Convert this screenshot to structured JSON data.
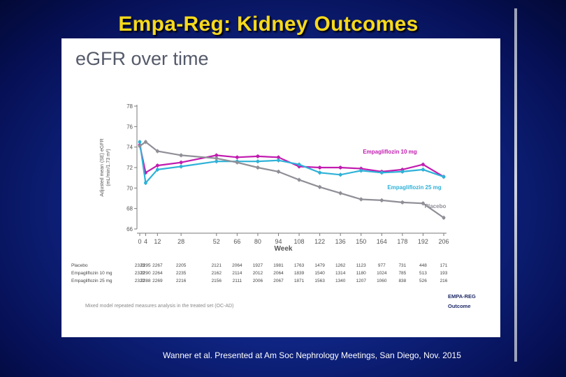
{
  "slide": {
    "title": "Empa-Reg: Kidney Outcomes",
    "citation": "Wanner et al.  Presented at Am Soc Nephrology Meetings, San Diego, Nov. 2015",
    "colors": {
      "title": "#f6d91c",
      "background": "#0f2583"
    }
  },
  "chart_data": {
    "type": "line",
    "title": "eGFR over time",
    "xlabel": "Week",
    "ylabel_lines": [
      "Adjusted mean (SE) eGFR",
      "(mL/min/1.73 m²)"
    ],
    "ylim": [
      66,
      78
    ],
    "yticks": [
      66,
      68,
      70,
      72,
      74,
      76,
      78
    ],
    "x": [
      0,
      4,
      12,
      28,
      52,
      66,
      80,
      94,
      108,
      122,
      136,
      150,
      164,
      178,
      192,
      206
    ],
    "x_tick_labels": [
      "0",
      "4",
      "12",
      "28",
      "52",
      "66",
      "80",
      "94",
      "108",
      "122",
      "136",
      "150",
      "164",
      "178",
      "192",
      "206"
    ],
    "series": [
      {
        "name": "Empagliflozin 10 mg",
        "color": "#c21cb0",
        "values": [
          74.2,
          71.5,
          72.2,
          72.5,
          73.2,
          73.0,
          73.1,
          73.0,
          72.1,
          72.0,
          72.0,
          71.9,
          71.6,
          71.8,
          72.3,
          71.1
        ]
      },
      {
        "name": "Empagliflozin 25 mg",
        "color": "#2eb2d8",
        "values": [
          74.5,
          70.5,
          71.8,
          72.1,
          72.6,
          72.6,
          72.6,
          72.7,
          72.3,
          71.5,
          71.3,
          71.7,
          71.5,
          71.6,
          71.8,
          71.1
        ]
      },
      {
        "name": "Placebo",
        "color": "#8f8f97",
        "values": [
          74.1,
          74.5,
          73.6,
          73.2,
          72.9,
          72.5,
          72.0,
          71.6,
          70.8,
          70.1,
          69.5,
          68.9,
          68.8,
          68.6,
          68.5,
          67.1
        ]
      }
    ],
    "at_risk": {
      "rows": [
        {
          "label": "Placebo",
          "values": [
            "2323",
            "2295",
            "2267",
            "2205",
            "2121",
            "2064",
            "1927",
            "1981",
            "1763",
            "1479",
            "1262",
            "1123",
            "977",
            "731",
            "448",
            "171"
          ]
        },
        {
          "label": "Empagliflozin 10 mg",
          "values": [
            "2322",
            "2290",
            "2264",
            "2235",
            "2162",
            "2114",
            "2012",
            "2064",
            "1839",
            "1540",
            "1314",
            "1180",
            "1024",
            "785",
            "513",
            "193"
          ]
        },
        {
          "label": "Empagliflozin 25 mg",
          "values": [
            "2322",
            "2288",
            "2269",
            "2216",
            "2156",
            "2111",
            "2006",
            "2067",
            "1871",
            "1563",
            "1340",
            "1207",
            "1060",
            "838",
            "526",
            "216"
          ]
        }
      ]
    },
    "footnote": "Mixed model repeated measures analysis in the treated set (OC-AD)",
    "logo_lines": [
      "EMPA-REG",
      "Outcome"
    ]
  }
}
